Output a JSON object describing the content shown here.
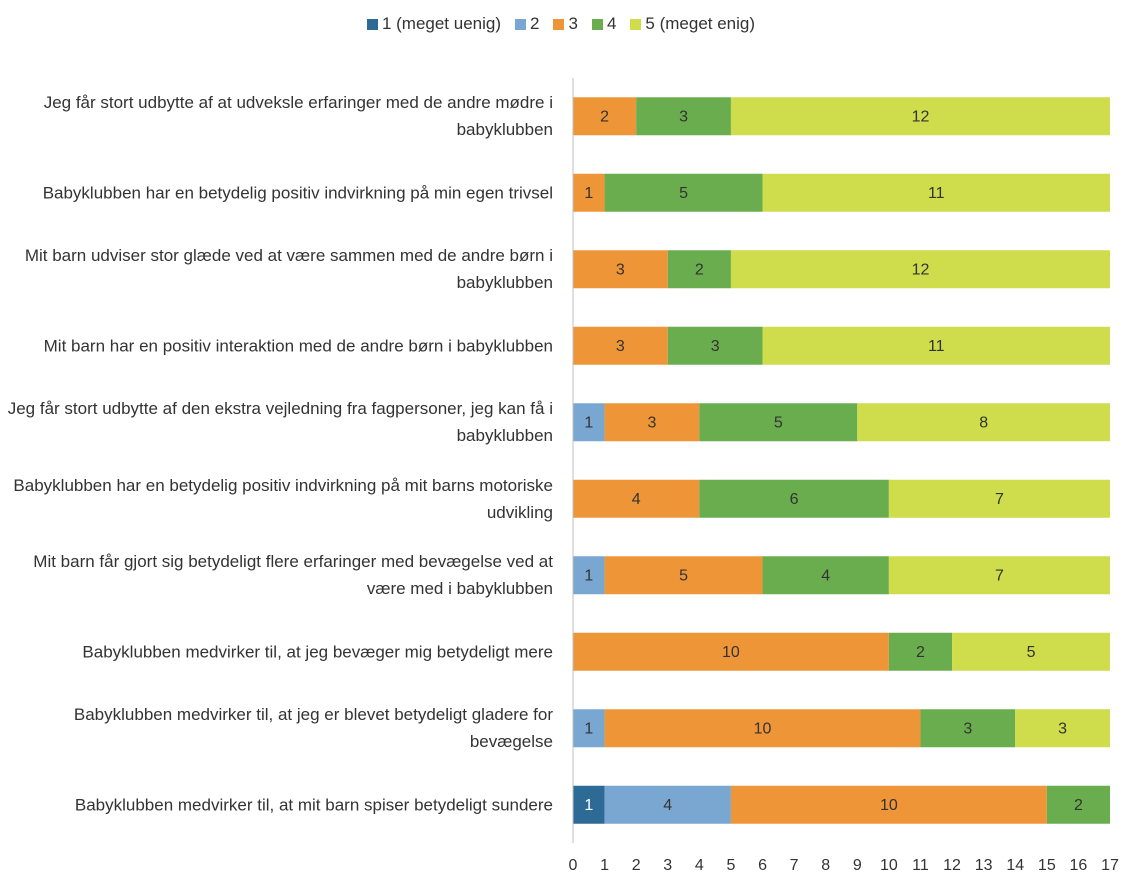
{
  "chart_data": {
    "type": "stacked_barh",
    "categories": [
      "Jeg får stort udbytte af at udveksle erfaringer med de andre mødre i babyklubben",
      "Babyklubben har en betydelig positiv indvirkning på min egen trivsel",
      "Mit barn udviser stor glæde ved at være sammen med de andre børn i babyklubben",
      "Mit barn har en positiv interaktion med de andre børn i babyklubben",
      "Jeg får stort udbytte af den ekstra vejledning fra fagpersoner, jeg kan få i babyklubben",
      "Babyklubben har en betydelig positiv indvirkning på mit barns motoriske udvikling",
      "Mit barn får gjort sig betydeligt flere erfaringer med bevægelse ved at være med i babyklubben",
      "Babyklubben medvirker til, at jeg bevæger mig betydeligt mere",
      "Babyklubben medvirker til, at jeg er blevet betydeligt gladere for bevægelse",
      "Babyklubben medvirker til, at mit barn spiser betydeligt sundere"
    ],
    "series": [
      {
        "name": "1 (meget uenig)",
        "color": "#2e6a96",
        "values": [
          null,
          null,
          null,
          null,
          null,
          null,
          null,
          null,
          null,
          1
        ]
      },
      {
        "name": "2",
        "color": "#7aa6d2",
        "values": [
          null,
          null,
          null,
          null,
          1,
          null,
          1,
          null,
          1,
          4
        ]
      },
      {
        "name": "3",
        "color": "#ee9538",
        "values": [
          2,
          1,
          3,
          3,
          3,
          4,
          5,
          10,
          10,
          10
        ]
      },
      {
        "name": "4",
        "color": "#6aad4e",
        "values": [
          3,
          5,
          2,
          3,
          5,
          6,
          4,
          2,
          3,
          2
        ]
      },
      {
        "name": "5 (meget enig)",
        "color": "#cfdc4b",
        "values": [
          12,
          11,
          12,
          11,
          8,
          7,
          7,
          5,
          3,
          null
        ]
      }
    ],
    "xlim": [
      0,
      17
    ],
    "xticks": [
      0,
      1,
      2,
      3,
      4,
      5,
      6,
      7,
      8,
      9,
      10,
      11,
      12,
      13,
      14,
      15,
      16,
      17
    ]
  }
}
